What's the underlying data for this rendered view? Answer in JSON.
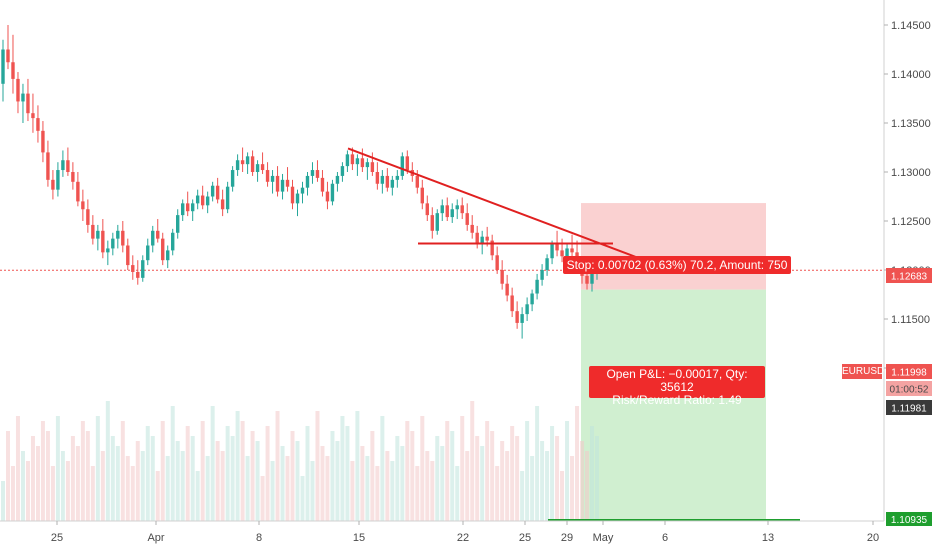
{
  "chart_data": {
    "type": "candlestick",
    "symbol": "EURUSD",
    "y_axis": {
      "ticks": [
        "1.14500",
        "1.14000",
        "1.13500",
        "1.13000",
        "1.12500",
        "1.12000",
        "1.11500",
        "1.11000"
      ],
      "range": [
        1.1085,
        1.1485
      ]
    },
    "x_axis": {
      "ticks": [
        "25",
        "Apr",
        "8",
        "15",
        "22",
        "25",
        "29",
        "May",
        "6",
        "13",
        "20"
      ]
    },
    "price_labels": {
      "current_symbol": "EURUSD",
      "current_price": "1.11998",
      "countdown": "01:00:52",
      "bid": "1.11981",
      "stop_price": "1.12683",
      "target_price": "1.10935"
    },
    "position": {
      "stop_text": "Stop: 0.00702 (0.63%) 70.2, Amount: 750",
      "pnl_text": "Open P&L: −0.00017, Qty: 35612",
      "rr_text": "Risk/Reward Ratio: 1.49"
    },
    "colors": {
      "up": "#26a69a",
      "down": "#ef5350",
      "trendline": "#e02020",
      "stop_zone": "#f9c9c9",
      "target_zone": "#c8ecc8",
      "price_line": "#ef5350",
      "target_line": "#1e9e2e"
    },
    "series": [
      {
        "values": [
          [
            1.139,
            1.1435,
            1.1372,
            1.1425
          ],
          [
            1.1425,
            1.145,
            1.1405,
            1.1412
          ],
          [
            1.1412,
            1.144,
            1.138,
            1.1395
          ],
          [
            1.1395,
            1.1402,
            1.136,
            1.1372
          ],
          [
            1.1372,
            1.139,
            1.135,
            1.138
          ],
          [
            1.138,
            1.1395,
            1.1352,
            1.136
          ],
          [
            1.136,
            1.138,
            1.134,
            1.1355
          ],
          [
            1.1355,
            1.1368,
            1.133,
            1.1342
          ],
          [
            1.1342,
            1.1352,
            1.131,
            1.132
          ],
          [
            1.132,
            1.1332,
            1.1285,
            1.1292
          ],
          [
            1.1292,
            1.1302,
            1.1272,
            1.1282
          ],
          [
            1.1282,
            1.131,
            1.1275,
            1.1302
          ],
          [
            1.1302,
            1.1322,
            1.1295,
            1.1312
          ],
          [
            1.1312,
            1.1325,
            1.1296,
            1.13
          ],
          [
            1.13,
            1.131,
            1.1282,
            1.129
          ],
          [
            1.129,
            1.13,
            1.1265,
            1.127
          ],
          [
            1.127,
            1.1282,
            1.125,
            1.1262
          ],
          [
            1.1262,
            1.1272,
            1.1238,
            1.1246
          ],
          [
            1.1246,
            1.1256,
            1.1226,
            1.1232
          ],
          [
            1.1232,
            1.1246,
            1.122,
            1.124
          ],
          [
            1.124,
            1.1252,
            1.1212,
            1.1218
          ],
          [
            1.1218,
            1.123,
            1.1205,
            1.1222
          ],
          [
            1.1222,
            1.1238,
            1.1215,
            1.1232
          ],
          [
            1.1232,
            1.1246,
            1.1222,
            1.124
          ],
          [
            1.124,
            1.125,
            1.1218,
            1.1225
          ],
          [
            1.1225,
            1.1232,
            1.12,
            1.1205
          ],
          [
            1.1205,
            1.1215,
            1.119,
            1.1198
          ],
          [
            1.1198,
            1.121,
            1.1185,
            1.1192
          ],
          [
            1.1192,
            1.1215,
            1.1188,
            1.121
          ],
          [
            1.121,
            1.1232,
            1.1205,
            1.1225
          ],
          [
            1.1225,
            1.1245,
            1.1218,
            1.124
          ],
          [
            1.124,
            1.1252,
            1.1228,
            1.1232
          ],
          [
            1.1232,
            1.1238,
            1.1205,
            1.121
          ],
          [
            1.121,
            1.1225,
            1.1202,
            1.122
          ],
          [
            1.122,
            1.1242,
            1.1215,
            1.1238
          ],
          [
            1.1238,
            1.1262,
            1.1232,
            1.1256
          ],
          [
            1.1256,
            1.1272,
            1.125,
            1.1268
          ],
          [
            1.1268,
            1.128,
            1.1255,
            1.126
          ],
          [
            1.126,
            1.1272,
            1.125,
            1.1268
          ],
          [
            1.1268,
            1.1282,
            1.1262,
            1.1276
          ],
          [
            1.1276,
            1.1286,
            1.1262,
            1.1266
          ],
          [
            1.1266,
            1.128,
            1.1258,
            1.1275
          ],
          [
            1.1275,
            1.129,
            1.127,
            1.1286
          ],
          [
            1.1286,
            1.1294,
            1.1268,
            1.1272
          ],
          [
            1.1272,
            1.1282,
            1.1255,
            1.1262
          ],
          [
            1.1262,
            1.129,
            1.1258,
            1.1285
          ],
          [
            1.1285,
            1.1306,
            1.128,
            1.1302
          ],
          [
            1.1302,
            1.1318,
            1.1296,
            1.1312
          ],
          [
            1.1312,
            1.1325,
            1.13,
            1.1308
          ],
          [
            1.1308,
            1.132,
            1.1298,
            1.1316
          ],
          [
            1.1316,
            1.1322,
            1.1296,
            1.13
          ],
          [
            1.13,
            1.1312,
            1.129,
            1.1308
          ],
          [
            1.1308,
            1.132,
            1.1298,
            1.1302
          ],
          [
            1.1302,
            1.131,
            1.1285,
            1.129
          ],
          [
            1.129,
            1.1302,
            1.1278,
            1.1296
          ],
          [
            1.1296,
            1.1306,
            1.1275,
            1.128
          ],
          [
            1.128,
            1.1298,
            1.1272,
            1.1292
          ],
          [
            1.1292,
            1.1305,
            1.128,
            1.1285
          ],
          [
            1.1285,
            1.1292,
            1.1262,
            1.1268
          ],
          [
            1.1268,
            1.1282,
            1.1255,
            1.1278
          ],
          [
            1.1278,
            1.129,
            1.1268,
            1.1284
          ],
          [
            1.1284,
            1.13,
            1.1276,
            1.1296
          ],
          [
            1.1296,
            1.131,
            1.1288,
            1.1302
          ],
          [
            1.1302,
            1.1312,
            1.129,
            1.1294
          ],
          [
            1.1294,
            1.1302,
            1.1275,
            1.128
          ],
          [
            1.128,
            1.129,
            1.1262,
            1.127
          ],
          [
            1.127,
            1.1292,
            1.1266,
            1.1288
          ],
          [
            1.1288,
            1.13,
            1.128,
            1.1296
          ],
          [
            1.1296,
            1.131,
            1.129,
            1.1306
          ],
          [
            1.1306,
            1.1322,
            1.13,
            1.1318
          ],
          [
            1.1318,
            1.1325,
            1.1302,
            1.1308
          ],
          [
            1.1308,
            1.1318,
            1.1296,
            1.1314
          ],
          [
            1.1314,
            1.1324,
            1.13,
            1.1305
          ],
          [
            1.1305,
            1.1314,
            1.1292,
            1.131
          ],
          [
            1.131,
            1.132,
            1.1296,
            1.13
          ],
          [
            1.13,
            1.131,
            1.1282,
            1.1288
          ],
          [
            1.1288,
            1.1302,
            1.1278,
            1.1296
          ],
          [
            1.1296,
            1.1304,
            1.128,
            1.1284
          ],
          [
            1.1284,
            1.1296,
            1.1276,
            1.1292
          ],
          [
            1.1292,
            1.1302,
            1.1284,
            1.1296
          ],
          [
            1.1296,
            1.132,
            1.1292,
            1.1316
          ],
          [
            1.1316,
            1.1322,
            1.1298,
            1.1302
          ],
          [
            1.1302,
            1.131,
            1.129,
            1.1296
          ],
          [
            1.1296,
            1.1302,
            1.1278,
            1.1284
          ],
          [
            1.1284,
            1.1292,
            1.1262,
            1.1268
          ],
          [
            1.1268,
            1.1276,
            1.125,
            1.1256
          ],
          [
            1.1256,
            1.1264,
            1.1232,
            1.124
          ],
          [
            1.124,
            1.1262,
            1.1236,
            1.1258
          ],
          [
            1.1258,
            1.1272,
            1.125,
            1.1266
          ],
          [
            1.1266,
            1.1274,
            1.125,
            1.1254
          ],
          [
            1.1254,
            1.1268,
            1.1248,
            1.1262
          ],
          [
            1.1262,
            1.1272,
            1.1252,
            1.1266
          ],
          [
            1.1266,
            1.1274,
            1.1252,
            1.1258
          ],
          [
            1.1258,
            1.1268,
            1.124,
            1.1246
          ],
          [
            1.1246,
            1.1256,
            1.1232,
            1.1238
          ],
          [
            1.1238,
            1.1245,
            1.1222,
            1.1228
          ],
          [
            1.1228,
            1.124,
            1.1216,
            1.1234
          ],
          [
            1.1234,
            1.1244,
            1.1224,
            1.123
          ],
          [
            1.123,
            1.1236,
            1.121,
            1.1215
          ],
          [
            1.1215,
            1.1224,
            1.1196,
            1.12
          ],
          [
            1.12,
            1.121,
            1.118,
            1.1186
          ],
          [
            1.1186,
            1.1195,
            1.1168,
            1.1174
          ],
          [
            1.1174,
            1.1182,
            1.1152,
            1.1158
          ],
          [
            1.1158,
            1.1168,
            1.114,
            1.1146
          ],
          [
            1.1146,
            1.1162,
            1.113,
            1.1155
          ],
          [
            1.1155,
            1.1172,
            1.1148,
            1.1165
          ],
          [
            1.1165,
            1.118,
            1.1158,
            1.1176
          ],
          [
            1.1176,
            1.1196,
            1.117,
            1.119
          ],
          [
            1.119,
            1.1206,
            1.1184,
            1.12
          ],
          [
            1.12,
            1.1216,
            1.1194,
            1.1212
          ],
          [
            1.1212,
            1.123,
            1.1206,
            1.1226
          ],
          [
            1.1226,
            1.124,
            1.1214,
            1.122
          ],
          [
            1.122,
            1.1232,
            1.1208,
            1.1214
          ],
          [
            1.1214,
            1.1228,
            1.1206,
            1.1222
          ],
          [
            1.1222,
            1.1236,
            1.1212,
            1.1218
          ],
          [
            1.1218,
            1.123,
            1.1196,
            1.1202
          ],
          [
            1.1202,
            1.1212,
            1.1186,
            1.1194
          ],
          [
            1.1194,
            1.1206,
            1.118,
            1.1186
          ],
          [
            1.1186,
            1.12,
            1.1178,
            1.1196
          ],
          [
            1.1196,
            1.121,
            1.119,
            1.1198
          ]
        ]
      }
    ]
  }
}
